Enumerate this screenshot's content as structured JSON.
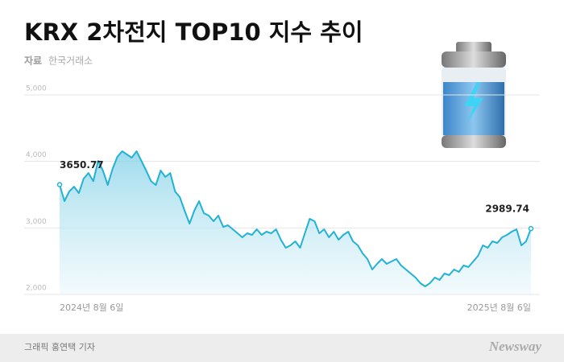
{
  "chart_data": {
    "type": "line",
    "title": "KRX 2차전지 TOP10 지수 추이",
    "source_label": "자료",
    "source": "한국거래소",
    "color": "#22b2d6",
    "ylim": [
      2000,
      5000
    ],
    "yticks": [
      {
        "value": 2000,
        "label": "2,000"
      },
      {
        "value": 3000,
        "label": "3,000"
      },
      {
        "value": 4000,
        "label": "4,000"
      },
      {
        "value": 5000,
        "label": "5,000"
      }
    ],
    "grid": true,
    "categories": [
      "2024년 8월 6일",
      null,
      null,
      null,
      null,
      null,
      null,
      null,
      null,
      null,
      null,
      null,
      null,
      null,
      null,
      null,
      null,
      null,
      null,
      null,
      null,
      null,
      null,
      null,
      null,
      null,
      null,
      null,
      null,
      null,
      null,
      null,
      null,
      null,
      null,
      null,
      null,
      null,
      null,
      null,
      null,
      null,
      null,
      null,
      null,
      null,
      null,
      null,
      null,
      null,
      null,
      null,
      null,
      null,
      null,
      null,
      null,
      null,
      null,
      null,
      null,
      null,
      null,
      null,
      null,
      null,
      null,
      null,
      null,
      null,
      null,
      null,
      null,
      null,
      null,
      null,
      null,
      null,
      null,
      null,
      null,
      null,
      null,
      null,
      null,
      null,
      null,
      null,
      null,
      null,
      null,
      null,
      null,
      null,
      null,
      null,
      null,
      null,
      "2025년 8월 6일"
    ],
    "values": [
      3650.77,
      3403,
      3548,
      3620,
      3524,
      3742,
      3826,
      3705,
      4008,
      3863,
      3645,
      3887,
      4068,
      4153,
      4105,
      4056,
      4153,
      4008,
      3863,
      3705,
      3645,
      3863,
      3766,
      3826,
      3548,
      3463,
      3258,
      3064,
      3258,
      3403,
      3221,
      3185,
      3101,
      3185,
      3016,
      3040,
      2980,
      2919,
      2859,
      2919,
      2895,
      2980,
      2895,
      2943,
      2919,
      2980,
      2823,
      2702,
      2738,
      2798,
      2702,
      2919,
      3137,
      3101,
      2919,
      2980,
      2859,
      2943,
      2823,
      2895,
      2943,
      2798,
      2738,
      2617,
      2532,
      2375,
      2460,
      2532,
      2460,
      2496,
      2532,
      2435,
      2375,
      2315,
      2254,
      2169,
      2121,
      2169,
      2254,
      2218,
      2315,
      2290,
      2375,
      2339,
      2435,
      2411,
      2496,
      2581,
      2738,
      2702,
      2798,
      2774,
      2859,
      2895,
      2943,
      2980,
      2738,
      2798,
      2989.74
    ]
  },
  "footer": {
    "credit": "그래픽 홍연택 기자",
    "logo": "Newsway"
  }
}
